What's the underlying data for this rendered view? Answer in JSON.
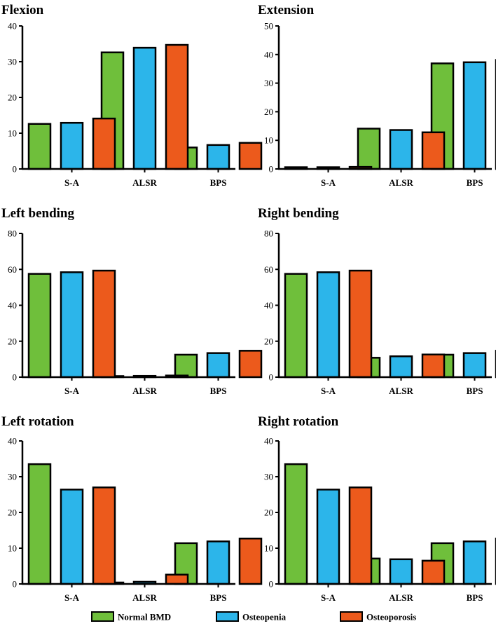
{
  "colors": {
    "Normal BMD": "#6fbf3b",
    "Osteopenia": "#2cb5ea",
    "Osteoporosis": "#ec5a1c",
    "outline": "#000000"
  },
  "legend": [
    "Normal BMD",
    "Osteopenia",
    "Osteoporosis"
  ],
  "chart_data": [
    {
      "type": "bar",
      "title": "Flexion",
      "categories": [
        "S-A",
        "ALSR",
        "BPS"
      ],
      "ylim": [
        0,
        40
      ],
      "yticks": [
        0,
        10,
        20,
        30,
        40
      ],
      "series": [
        {
          "name": "Normal BMD",
          "values": [
            12.6,
            32.6,
            6.0
          ]
        },
        {
          "name": "Osteopenia",
          "values": [
            12.9,
            33.9,
            6.7
          ]
        },
        {
          "name": "Osteoporosis",
          "values": [
            14.1,
            34.7,
            7.3
          ]
        }
      ]
    },
    {
      "type": "bar",
      "title": "Extension",
      "categories": [
        "S-A",
        "ALSR",
        "BPS"
      ],
      "ylim": [
        0,
        50
      ],
      "yticks": [
        0,
        10,
        20,
        30,
        40,
        50
      ],
      "series": [
        {
          "name": "Normal BMD",
          "values": [
            0.6,
            14.1,
            36.9
          ]
        },
        {
          "name": "Osteopenia",
          "values": [
            0.6,
            13.6,
            37.3
          ]
        },
        {
          "name": "Osteoporosis",
          "values": [
            0.7,
            12.8,
            38.1
          ]
        }
      ]
    },
    {
      "type": "bar",
      "title": "Left bending",
      "categories": [
        "S-A",
        "ALSR",
        "BPS"
      ],
      "ylim": [
        0,
        80
      ],
      "yticks": [
        0,
        20,
        40,
        60,
        80
      ],
      "series": [
        {
          "name": "Normal BMD",
          "values": [
            57.5,
            0.6,
            12.5
          ]
        },
        {
          "name": "Osteopenia",
          "values": [
            58.4,
            0.7,
            13.4
          ]
        },
        {
          "name": "Osteoporosis",
          "values": [
            59.3,
            0.9,
            14.7
          ]
        }
      ]
    },
    {
      "type": "bar",
      "title": "Right bending",
      "categories": [
        "S-A",
        "ALSR",
        "BPS"
      ],
      "ylim": [
        0,
        80
      ],
      "yticks": [
        0,
        20,
        40,
        60,
        80
      ],
      "series": [
        {
          "name": "Normal BMD",
          "values": [
            57.5,
            10.8,
            12.5
          ]
        },
        {
          "name": "Osteopenia",
          "values": [
            58.4,
            11.6,
            13.4
          ]
        },
        {
          "name": "Osteoporosis",
          "values": [
            59.3,
            12.6,
            14.7
          ]
        }
      ]
    },
    {
      "type": "bar",
      "title": "Left rotation",
      "categories": [
        "S-A",
        "ALSR",
        "BPS"
      ],
      "ylim": [
        0,
        40
      ],
      "yticks": [
        0,
        10,
        20,
        30,
        40
      ],
      "series": [
        {
          "name": "Normal BMD",
          "values": [
            33.5,
            0.4,
            11.4
          ]
        },
        {
          "name": "Osteopenia",
          "values": [
            26.4,
            0.6,
            11.9
          ]
        },
        {
          "name": "Osteoporosis",
          "values": [
            27.0,
            2.6,
            12.7
          ]
        }
      ]
    },
    {
      "type": "bar",
      "title": "Right rotation",
      "categories": [
        "S-A",
        "ALSR",
        "BPS"
      ],
      "ylim": [
        0,
        40
      ],
      "yticks": [
        0,
        10,
        20,
        30,
        40
      ],
      "series": [
        {
          "name": "Normal BMD",
          "values": [
            33.5,
            7.1,
            11.4
          ]
        },
        {
          "name": "Osteopenia",
          "values": [
            26.4,
            6.9,
            11.9
          ]
        },
        {
          "name": "Osteoporosis",
          "values": [
            27.0,
            6.5,
            12.7
          ]
        }
      ]
    }
  ]
}
